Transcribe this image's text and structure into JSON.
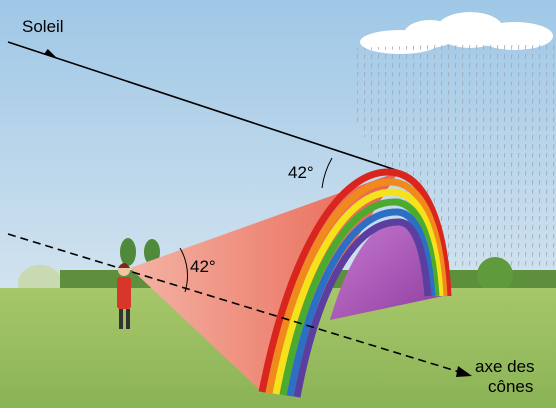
{
  "labels": {
    "sun": "Soleil",
    "angle_top": "42°",
    "angle_cone": "42°",
    "axis_line1": "axe des",
    "axis_line2": "cônes"
  }
}
